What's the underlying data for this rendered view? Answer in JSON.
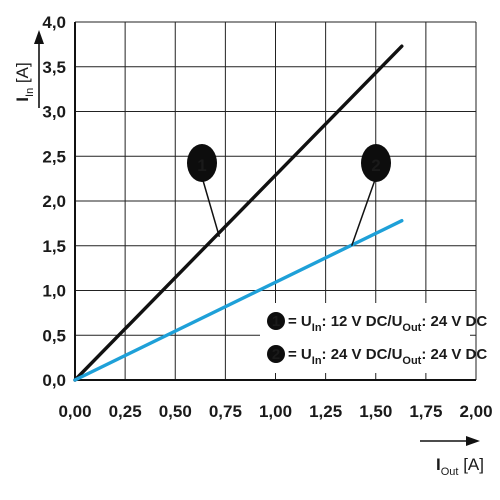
{
  "chart_data": {
    "type": "line",
    "xlabel": {
      "symbol": "I",
      "sub": "Out",
      "unit": "[A]"
    },
    "ylabel": {
      "symbol": "I",
      "sub": "In",
      "unit": "[A]"
    },
    "xlim": [
      0,
      2
    ],
    "ylim": [
      0,
      4
    ],
    "x_ticks": [
      "0,00",
      "0,25",
      "0,50",
      "0,75",
      "1,00",
      "1,25",
      "1,50",
      "1,75",
      "2,00"
    ],
    "y_ticks": [
      "0,0",
      "0,5",
      "1,0",
      "1,5",
      "2,0",
      "2,5",
      "3,0",
      "3,5",
      "4,0"
    ],
    "grid": true,
    "legend_position": "bottom-right",
    "series": [
      {
        "marker": "1",
        "name_parts": [
          "U",
          "In",
          ": 12 V DC/U",
          "Out",
          ": 24 V DC"
        ],
        "color": "#111111",
        "points": [
          [
            0.0,
            0.0
          ],
          [
            1.63,
            3.73
          ]
        ],
        "callout_at": [
          0.72,
          1.6
        ]
      },
      {
        "marker": "2",
        "name_parts": [
          "U",
          "In",
          ": 24 V DC/U",
          "Out",
          ": 24 V DC"
        ],
        "color": "#1ea0d8",
        "points": [
          [
            0.0,
            0.0
          ],
          [
            1.63,
            1.78
          ]
        ],
        "callout_at": [
          1.38,
          1.5
        ]
      }
    ]
  }
}
